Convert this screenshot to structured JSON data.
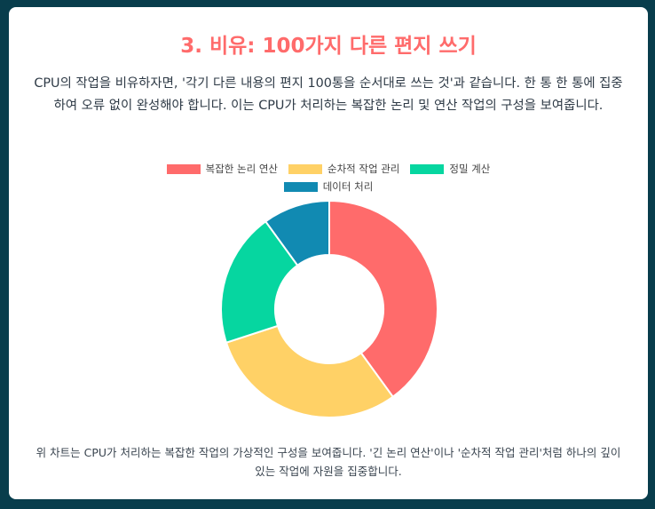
{
  "title": "3. 비유: 100가지 다른 편지 쓰기",
  "description": "CPU의 작업을 비유하자면, '각기 다른 내용의 편지 100통을 순서대로 쓰는 것'과 같습니다. 한 통 한 통에 집중하여 오류 없이 완성해야 합니다. 이는 CPU가 처리하는 복잡한 논리 및 연산 작업의 구성을 보여줍니다.",
  "caption": "위 차트는 CPU가 처리하는 복잡한 작업의 가상적인 구성을 보여줍니다. '긴 논리 연산'이나 '순차적 작업 관리'처럼 하나의 깊이 있는 작업에 자원을 집중합니다.",
  "colors": {
    "accent": "#ff6b6b",
    "background": "#083d4c"
  },
  "chart_data": {
    "type": "pie",
    "variant": "doughnut",
    "legend_position": "top",
    "categories": [
      "복잡한 논리 연산",
      "순차적 작업 관리",
      "정밀 계산",
      "데이터 처리"
    ],
    "values": [
      40,
      30,
      20,
      10
    ],
    "colors": [
      "#ff6b6b",
      "#ffd166",
      "#06d6a0",
      "#118ab2"
    ]
  }
}
